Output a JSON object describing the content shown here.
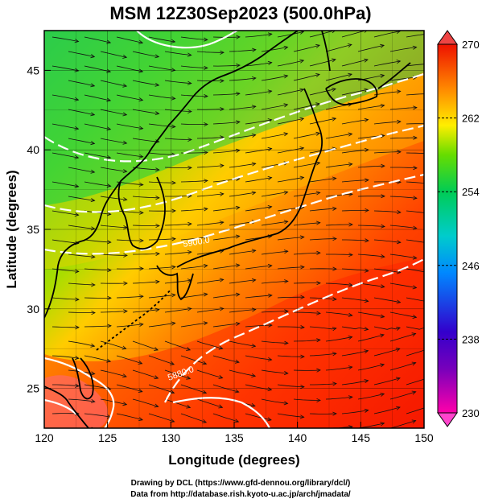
{
  "title": "MSM 12Z30Sep2023 (500.0hPa)",
  "x_label": "Longitude (degrees)",
  "y_label": "Latitude  (degrees)",
  "x_ticks": [
    "120",
    "125",
    "130",
    "135",
    "140",
    "145",
    "150"
  ],
  "y_ticks": [
    "25",
    "30",
    "35",
    "40",
    "45"
  ],
  "colorbar": {
    "min": 230,
    "max": 270,
    "tick_labels": [
      "270",
      "262",
      "254",
      "246",
      "238",
      "230"
    ],
    "colors": [
      "#ff00aa",
      "#3300cc",
      "#0088ff",
      "#00cccc",
      "#00cc55",
      "#66dd00",
      "#ffee00",
      "#ff8800",
      "#ff3300",
      "#ee1100"
    ]
  },
  "contour_labels": [
    "5880.0",
    "5900.0"
  ],
  "credits": {
    "line1": "Drawing by DCL (https://www.gfd-dennou.org/library/dcl/)",
    "line2": "Data from http://database.rish.kyoto-u.ac.jp/arch/jmadata/"
  },
  "chart_data": {
    "type": "heatmap",
    "title": "MSM 12Z30Sep2023 (500.0hPa)",
    "xlabel": "Longitude (degrees)",
    "ylabel": "Latitude  (degrees)",
    "xlim": [
      120,
      150
    ],
    "ylim": [
      22.5,
      47.5
    ],
    "color_range": [
      230,
      270
    ],
    "contours": [
      {
        "label": "5880.0"
      },
      {
        "label": "5900.0"
      }
    ],
    "overlays": [
      "streamlines",
      "coastlines",
      "grid"
    ],
    "grid": true
  }
}
